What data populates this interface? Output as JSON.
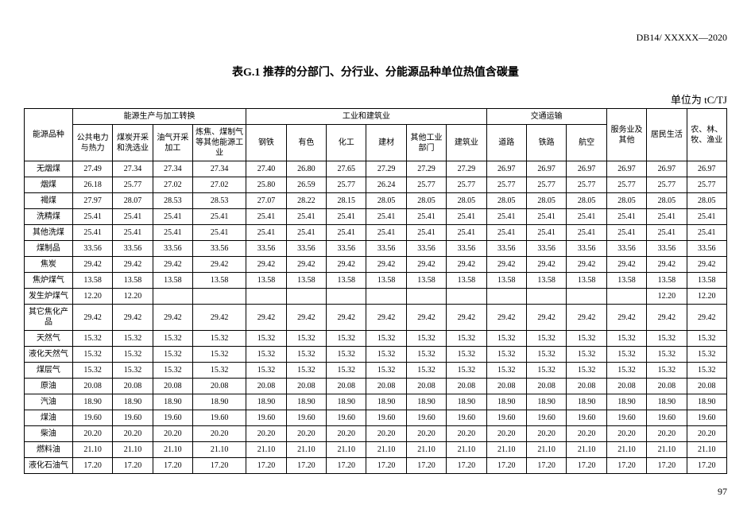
{
  "docHeader": "DB14/ XXXXX—2020",
  "title": "表G.1  推荐的分部门、分行业、分能源品种单位热值含碳量",
  "unit": "单位为 tC/TJ",
  "pageNum": "97",
  "headerRow1": {
    "c0": "能源品种",
    "g1": "能源生产与加工转换",
    "g2": "工业和建筑业",
    "g3": "交通运输",
    "c15": "服务业及其他",
    "c16": "居民生活",
    "c17": "农、林、牧、渔业"
  },
  "headerRow2": {
    "c1": "公共电力与热力",
    "c2": "煤炭开采和洗选业",
    "c3": "油气开采加工",
    "c4": "炼焦、煤制气等其他能源工业",
    "c5": "钢铁",
    "c6": "有色",
    "c7": "化工",
    "c8": "建材",
    "c9": "其他工业部门",
    "c10": "建筑业",
    "c11": "道路",
    "c12": "铁路",
    "c13": "航空",
    "c14": ""
  },
  "rows": [
    {
      "label": "无烟煤",
      "v": [
        "27.49",
        "27.34",
        "27.34",
        "27.34",
        "27.40",
        "26.80",
        "27.65",
        "27.29",
        "27.29",
        "27.29",
        "26.97",
        "26.97",
        "26.97",
        "26.97",
        "26.97",
        "26.97"
      ]
    },
    {
      "label": "烟煤",
      "v": [
        "26.18",
        "25.77",
        "27.02",
        "27.02",
        "25.80",
        "26.59",
        "25.77",
        "26.24",
        "25.77",
        "25.77",
        "25.77",
        "25.77",
        "25.77",
        "25.77",
        "25.77",
        "25.77"
      ]
    },
    {
      "label": "褐煤",
      "v": [
        "27.97",
        "28.07",
        "28.53",
        "28.53",
        "27.07",
        "28.22",
        "28.15",
        "28.05",
        "28.05",
        "28.05",
        "28.05",
        "28.05",
        "28.05",
        "28.05",
        "28.05",
        "28.05"
      ]
    },
    {
      "label": "洗精煤",
      "v": [
        "25.41",
        "25.41",
        "25.41",
        "25.41",
        "25.41",
        "25.41",
        "25.41",
        "25.41",
        "25.41",
        "25.41",
        "25.41",
        "25.41",
        "25.41",
        "25.41",
        "25.41",
        "25.41"
      ]
    },
    {
      "label": "其他洗煤",
      "v": [
        "25.41",
        "25.41",
        "25.41",
        "25.41",
        "25.41",
        "25.41",
        "25.41",
        "25.41",
        "25.41",
        "25.41",
        "25.41",
        "25.41",
        "25.41",
        "25.41",
        "25.41",
        "25.41"
      ]
    },
    {
      "label": "煤制品",
      "v": [
        "33.56",
        "33.56",
        "33.56",
        "33.56",
        "33.56",
        "33.56",
        "33.56",
        "33.56",
        "33.56",
        "33.56",
        "33.56",
        "33.56",
        "33.56",
        "33.56",
        "33.56",
        "33.56"
      ]
    },
    {
      "label": "焦炭",
      "v": [
        "29.42",
        "29.42",
        "29.42",
        "29.42",
        "29.42",
        "29.42",
        "29.42",
        "29.42",
        "29.42",
        "29.42",
        "29.42",
        "29.42",
        "29.42",
        "29.42",
        "29.42",
        "29.42"
      ]
    },
    {
      "label": "焦炉煤气",
      "v": [
        "13.58",
        "13.58",
        "13.58",
        "13.58",
        "13.58",
        "13.58",
        "13.58",
        "13.58",
        "13.58",
        "13.58",
        "13.58",
        "13.58",
        "13.58",
        "13.58",
        "13.58",
        "13.58"
      ]
    },
    {
      "label": "发生炉煤气",
      "v": [
        "12.20",
        "12.20",
        "",
        "",
        "",
        "",
        "",
        "",
        "",
        "",
        "",
        "",
        "",
        "",
        "12.20",
        "12.20"
      ]
    },
    {
      "label": "其它焦化产品",
      "v": [
        "29.42",
        "29.42",
        "29.42",
        "29.42",
        "29.42",
        "29.42",
        "29.42",
        "29.42",
        "29.42",
        "29.42",
        "29.42",
        "29.42",
        "29.42",
        "29.42",
        "29.42",
        "29.42"
      ]
    },
    {
      "label": "天然气",
      "v": [
        "15.32",
        "15.32",
        "15.32",
        "15.32",
        "15.32",
        "15.32",
        "15.32",
        "15.32",
        "15.32",
        "15.32",
        "15.32",
        "15.32",
        "15.32",
        "15.32",
        "15.32",
        "15.32"
      ]
    },
    {
      "label": "液化天然气",
      "v": [
        "15.32",
        "15.32",
        "15.32",
        "15.32",
        "15.32",
        "15.32",
        "15.32",
        "15.32",
        "15.32",
        "15.32",
        "15.32",
        "15.32",
        "15.32",
        "15.32",
        "15.32",
        "15.32"
      ]
    },
    {
      "label": "煤层气",
      "v": [
        "15.32",
        "15.32",
        "15.32",
        "15.32",
        "15.32",
        "15.32",
        "15.32",
        "15.32",
        "15.32",
        "15.32",
        "15.32",
        "15.32",
        "15.32",
        "15.32",
        "15.32",
        "15.32"
      ]
    },
    {
      "label": "原油",
      "v": [
        "20.08",
        "20.08",
        "20.08",
        "20.08",
        "20.08",
        "20.08",
        "20.08",
        "20.08",
        "20.08",
        "20.08",
        "20.08",
        "20.08",
        "20.08",
        "20.08",
        "20.08",
        "20.08"
      ]
    },
    {
      "label": "汽油",
      "v": [
        "18.90",
        "18.90",
        "18.90",
        "18.90",
        "18.90",
        "18.90",
        "18.90",
        "18.90",
        "18.90",
        "18.90",
        "18.90",
        "18.90",
        "18.90",
        "18.90",
        "18.90",
        "18.90"
      ]
    },
    {
      "label": "煤油",
      "v": [
        "19.60",
        "19.60",
        "19.60",
        "19.60",
        "19.60",
        "19.60",
        "19.60",
        "19.60",
        "19.60",
        "19.60",
        "19.60",
        "19.60",
        "19.60",
        "19.60",
        "19.60",
        "19.60"
      ]
    },
    {
      "label": "柴油",
      "v": [
        "20.20",
        "20.20",
        "20.20",
        "20.20",
        "20.20",
        "20.20",
        "20.20",
        "20.20",
        "20.20",
        "20.20",
        "20.20",
        "20.20",
        "20.20",
        "20.20",
        "20.20",
        "20.20"
      ]
    },
    {
      "label": "燃料油",
      "v": [
        "21.10",
        "21.10",
        "21.10",
        "21.10",
        "21.10",
        "21.10",
        "21.10",
        "21.10",
        "21.10",
        "21.10",
        "21.10",
        "21.10",
        "21.10",
        "21.10",
        "21.10",
        "21.10"
      ]
    },
    {
      "label": "液化石油气",
      "v": [
        "17.20",
        "17.20",
        "17.20",
        "17.20",
        "17.20",
        "17.20",
        "17.20",
        "17.20",
        "17.20",
        "17.20",
        "17.20",
        "17.20",
        "17.20",
        "17.20",
        "17.20",
        "17.20"
      ]
    }
  ]
}
